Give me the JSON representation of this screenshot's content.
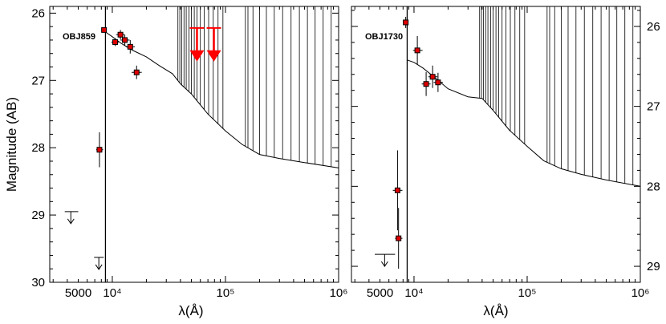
{
  "figure": {
    "ylabel": "Magnitude (AB)",
    "xlabel": "λ(Å)",
    "xscale": "log",
    "xlim": [
      2800,
      1000000
    ],
    "colors": {
      "data_point": "#e00000",
      "upper_limit": "#ff0000",
      "model": "#000000"
    }
  },
  "chart_data": [
    {
      "type": "scatter",
      "object": "OBJ859",
      "title": "OBJ859",
      "xlabel": "λ(Å)",
      "ylabel": "Magnitude (AB)",
      "xlim": [
        2800,
        1000000
      ],
      "ylim": [
        30,
        25.9
      ],
      "x_ticks": [
        {
          "value": 5000,
          "label": "5000"
        },
        {
          "value": 10000,
          "label": "10⁴"
        },
        {
          "value": 100000,
          "label": "10⁵"
        },
        {
          "value": 1000000,
          "label": "10⁶"
        }
      ],
      "y_ticks": [
        {
          "value": 26,
          "label": "26"
        },
        {
          "value": 27,
          "label": "27"
        },
        {
          "value": 28,
          "label": "28"
        },
        {
          "value": 29,
          "label": "29"
        },
        {
          "value": 30,
          "label": "30"
        }
      ],
      "y_axis_side": "left",
      "break_wavelength": 8700,
      "detections": [
        {
          "wavelength": 7700,
          "mag": 28.03,
          "xerr_lo": 7200,
          "xerr_hi": 8300,
          "yerr": 0.26
        },
        {
          "wavelength": 8450,
          "mag": 26.25,
          "xerr_lo": 8000,
          "xerr_hi": 8900,
          "yerr": 0.04
        },
        {
          "wavelength": 10600,
          "mag": 26.43,
          "xerr_lo": 9800,
          "xerr_hi": 11400,
          "yerr": 0.06
        },
        {
          "wavelength": 11800,
          "mag": 26.32,
          "xerr_lo": 10800,
          "xerr_hi": 12800,
          "yerr": 0.07
        },
        {
          "wavelength": 12900,
          "mag": 26.4,
          "xerr_lo": 11800,
          "xerr_hi": 14200,
          "yerr": 0.08
        },
        {
          "wavelength": 14400,
          "mag": 26.5,
          "xerr_lo": 13200,
          "xerr_hi": 15800,
          "yerr": 0.1
        },
        {
          "wavelength": 16400,
          "mag": 26.88,
          "xerr_lo": 14800,
          "xerr_hi": 18200,
          "yerr": 0.1
        }
      ],
      "upper_limits_black": [
        {
          "wavelength": 4300,
          "mag": 28.95,
          "xerr_lo": 3800,
          "xerr_hi": 5000
        },
        {
          "wavelength": 7600,
          "mag": 29.63,
          "xerr_lo": 6900,
          "xerr_hi": 8400
        }
      ],
      "upper_limits_red": [
        {
          "wavelength": 56000,
          "mag_top": 26.22,
          "mag_bottom": 26.72
        },
        {
          "wavelength": 79000,
          "mag_top": 26.22,
          "mag_bottom": 26.72
        }
      ],
      "model_sed": [
        {
          "wavelength": 8700,
          "mag": 26.28
        },
        {
          "wavelength": 10000,
          "mag": 26.35
        },
        {
          "wavelength": 12000,
          "mag": 26.45
        },
        {
          "wavelength": 15000,
          "mag": 26.55
        },
        {
          "wavelength": 20000,
          "mag": 26.65
        },
        {
          "wavelength": 26000,
          "mag": 26.78
        },
        {
          "wavelength": 34000,
          "mag": 26.9
        },
        {
          "wavelength": 40000,
          "mag": 27.05
        },
        {
          "wavelength": 50000,
          "mag": 27.2
        },
        {
          "wavelength": 70000,
          "mag": 27.5
        },
        {
          "wavelength": 100000,
          "mag": 27.75
        },
        {
          "wavelength": 140000,
          "mag": 27.95
        },
        {
          "wavelength": 200000,
          "mag": 28.1
        },
        {
          "wavelength": 300000,
          "mag": 28.16
        },
        {
          "wavelength": 500000,
          "mag": 28.22
        },
        {
          "wavelength": 1000000,
          "mag": 28.3
        }
      ],
      "emission_line_wavelengths": [
        38000,
        39500,
        41000,
        43000,
        45000,
        47500,
        50000,
        53000,
        56000,
        60000,
        65000,
        71000,
        78000,
        86000,
        95000,
        150000,
        158000,
        175000,
        200000,
        230000,
        270000,
        320000,
        380000,
        450000,
        530000,
        620000,
        730000,
        860000
      ]
    },
    {
      "type": "scatter",
      "object": "OBJ1730",
      "title": "OBJ1730",
      "xlabel": "λ(Å)",
      "ylabel": "Magnitude (AB)",
      "xlim": [
        2800,
        1000000
      ],
      "ylim": [
        29.2,
        25.75
      ],
      "x_ticks": [
        {
          "value": 5000,
          "label": "5000"
        },
        {
          "value": 10000,
          "label": "10⁴"
        },
        {
          "value": 100000,
          "label": "10⁵"
        },
        {
          "value": 1000000,
          "label": "10⁶"
        }
      ],
      "y_ticks": [
        {
          "value": 26,
          "label": "26"
        },
        {
          "value": 27,
          "label": "27"
        },
        {
          "value": 28,
          "label": "28"
        },
        {
          "value": 29,
          "label": "29"
        }
      ],
      "y_axis_side": "right",
      "break_wavelength": 8700,
      "detections": [
        {
          "wavelength": 7150,
          "mag": 28.05,
          "xerr_lo": 6500,
          "xerr_hi": 7900,
          "yerr": 0.5
        },
        {
          "wavelength": 7300,
          "mag": 28.65,
          "xerr_lo": 6800,
          "xerr_hi": 7900,
          "yerr": 0.38
        },
        {
          "wavelength": 8450,
          "mag": 25.95,
          "xerr_lo": 8000,
          "xerr_hi": 8900,
          "yerr": 0.07
        },
        {
          "wavelength": 10700,
          "mag": 26.3,
          "xerr_lo": 9800,
          "xerr_hi": 11900,
          "yerr": 0.18
        },
        {
          "wavelength": 12800,
          "mag": 26.72,
          "xerr_lo": 11700,
          "xerr_hi": 14000,
          "yerr": 0.15
        },
        {
          "wavelength": 14600,
          "mag": 26.63,
          "xerr_lo": 13400,
          "xerr_hi": 16100,
          "yerr": 0.14
        },
        {
          "wavelength": 16300,
          "mag": 26.7,
          "xerr_lo": 14900,
          "xerr_hi": 18000,
          "yerr": 0.12
        }
      ],
      "upper_limits_black": [
        {
          "wavelength": 5500,
          "mag": 28.85,
          "xerr_lo": 4500,
          "xerr_hi": 6800
        }
      ],
      "upper_limits_red": [],
      "model_sed": [
        {
          "wavelength": 8700,
          "mag": 26.42
        },
        {
          "wavelength": 10000,
          "mag": 26.45
        },
        {
          "wavelength": 12000,
          "mag": 26.52
        },
        {
          "wavelength": 15000,
          "mag": 26.63
        },
        {
          "wavelength": 20000,
          "mag": 26.78
        },
        {
          "wavelength": 30000,
          "mag": 26.88
        },
        {
          "wavelength": 40000,
          "mag": 26.9
        },
        {
          "wavelength": 50000,
          "mag": 27.05
        },
        {
          "wavelength": 70000,
          "mag": 27.3
        },
        {
          "wavelength": 100000,
          "mag": 27.5
        },
        {
          "wavelength": 140000,
          "mag": 27.68
        },
        {
          "wavelength": 200000,
          "mag": 27.78
        },
        {
          "wavelength": 300000,
          "mag": 27.85
        },
        {
          "wavelength": 500000,
          "mag": 27.92
        },
        {
          "wavelength": 1000000,
          "mag": 28.0
        }
      ],
      "emission_line_wavelengths": [
        38000,
        39500,
        41000,
        43000,
        45000,
        47500,
        50000,
        53000,
        56000,
        60000,
        65000,
        71000,
        78000,
        86000,
        95000,
        150000,
        158000,
        175000,
        200000,
        230000,
        270000,
        320000,
        380000,
        450000,
        530000,
        620000,
        730000,
        860000
      ]
    }
  ]
}
